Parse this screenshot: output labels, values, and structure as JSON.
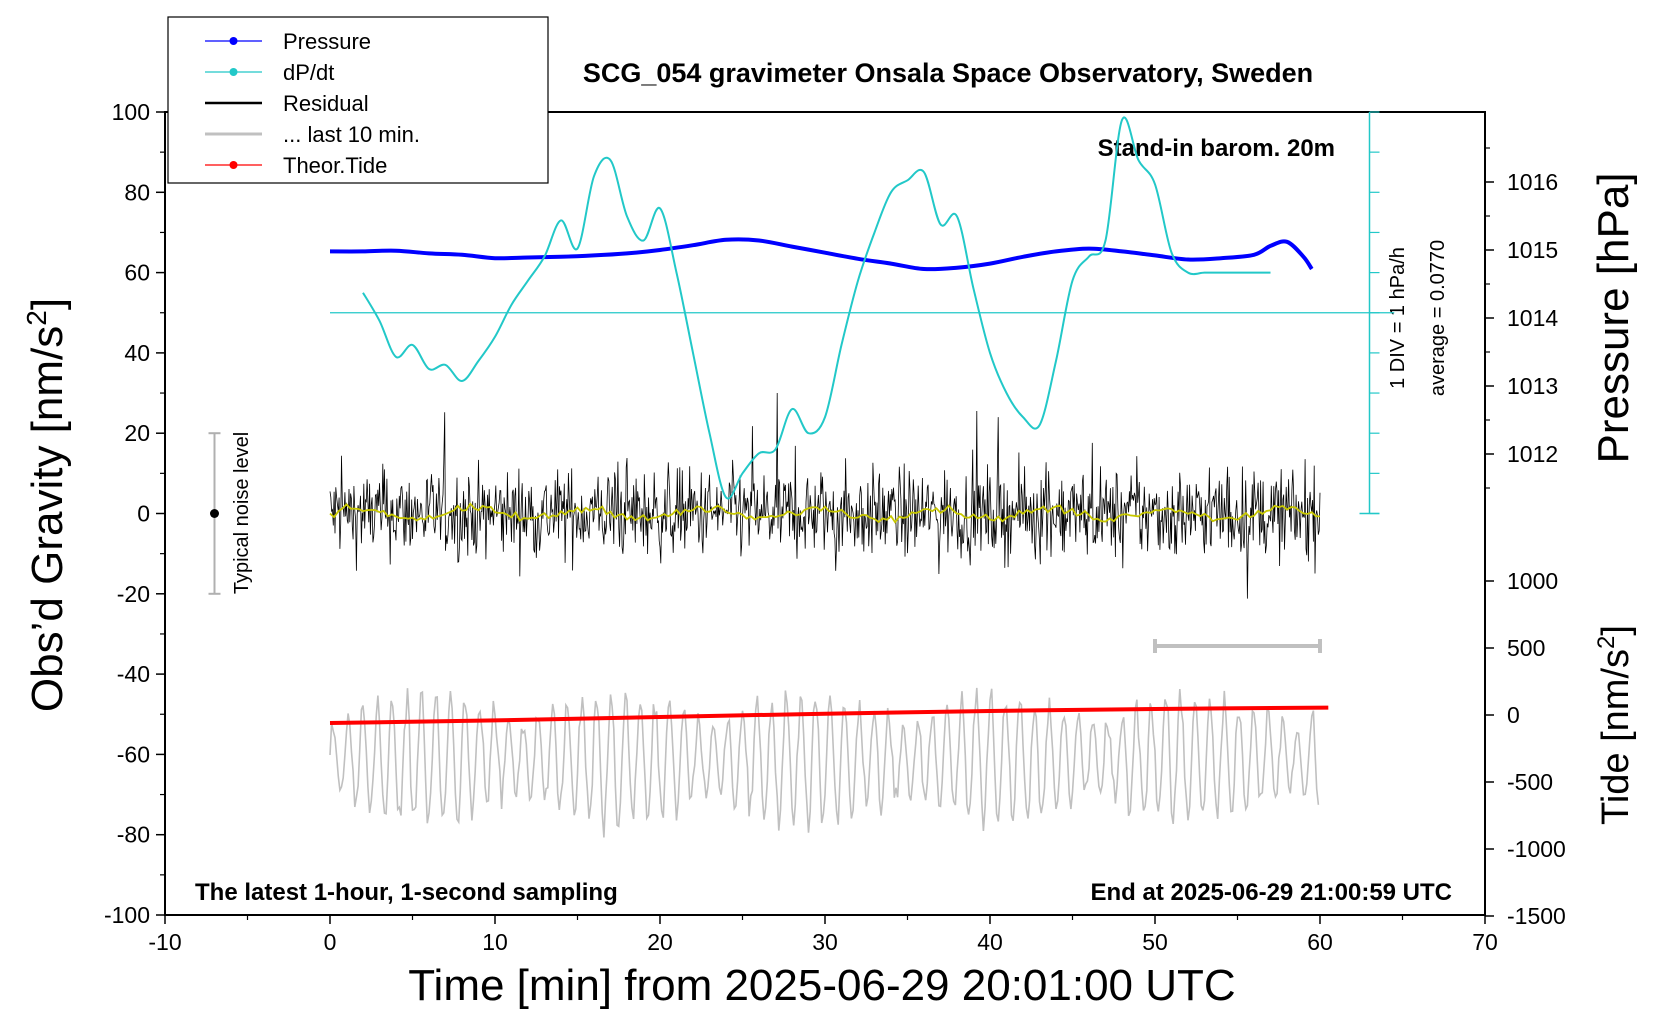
{
  "chart_data": {
    "type": "line",
    "title": "SCG_054 gravimeter Onsala Space Observatory, Sweden",
    "xlabel": "Time [min] from 2025-06-29 20:01:00 UTC",
    "ylabel_main": "Obs’d Gravity [nm/s",
    "ylabel_main_sup": "2",
    "ylabel_main_end": "]",
    "ylabel_pressure": "Pressure [hPa]",
    "ylabel_tide": "Tide [nm/s",
    "ylabel_tide_sup": "2",
    "ylabel_tide_end": "]",
    "xlim": [
      -10,
      70
    ],
    "ylim": [
      -100,
      100
    ],
    "pressure_ylim": [
      1011.0,
      1017.0
    ],
    "tide_ylim": [
      -1500,
      1500
    ],
    "x_ticks": [
      "-10",
      "0",
      "10",
      "20",
      "30",
      "40",
      "50",
      "60",
      "70"
    ],
    "y_ticks": [
      "-100",
      "-80",
      "-60",
      "-40",
      "-20",
      "0",
      "20",
      "40",
      "60",
      "80",
      "100"
    ],
    "pressure_ticks": [
      "1012",
      "1013",
      "1014",
      "1015",
      "1016"
    ],
    "tide_ticks": [
      "-1500",
      "-1000",
      "-500",
      "0",
      "500",
      "1000"
    ],
    "grid": false,
    "legend_position": "top-left, outside",
    "legend": [
      {
        "name": "Pressure",
        "color": "#0000ff",
        "marker": true
      },
      {
        "name": "dP/dt",
        "color": "#22c8c8",
        "marker": true
      },
      {
        "name": "Residual",
        "color": "#000000",
        "marker": false
      },
      {
        "name": "... last 10 min.",
        "color": "#c0c0c0",
        "marker": false
      },
      {
        "name": "Theor.Tide",
        "color": "#ff0000",
        "marker": true
      }
    ],
    "annotations": {
      "barometer": "Stand-in barom. 20m",
      "latest": "The latest 1-hour, 1-second sampling",
      "end": "End at 2025-06-29 21:00:59 UTC",
      "noise": "Typical noise level",
      "div": "1 DIV = 1 hPa/h",
      "average": "average = 0.0770"
    },
    "noise_bar": {
      "x": -7,
      "center": 0,
      "half_range": 20
    },
    "last10_bar": {
      "x": [
        50,
        60
      ],
      "y": -33
    },
    "dpdt_zero_line": 50,
    "series": [
      {
        "name": "Pressure",
        "axis": "pressure",
        "color": "#0000ff",
        "x": [
          0,
          2,
          4,
          6,
          8,
          10,
          12,
          14,
          16,
          18,
          20,
          22,
          24,
          26,
          28,
          30,
          32,
          34,
          36,
          38,
          40,
          42,
          44,
          46,
          48,
          50,
          52,
          54,
          56,
          57,
          58,
          59,
          59.5
        ],
        "y": [
          1014.98,
          1014.98,
          1014.99,
          1014.95,
          1014.93,
          1014.88,
          1014.89,
          1014.9,
          1014.92,
          1014.95,
          1015.0,
          1015.07,
          1015.15,
          1015.14,
          1015.05,
          1014.96,
          1014.87,
          1014.8,
          1014.72,
          1014.74,
          1014.8,
          1014.9,
          1014.98,
          1015.02,
          1014.98,
          1014.92,
          1014.86,
          1014.88,
          1014.93,
          1015.06,
          1015.12,
          1014.9,
          1014.72
        ]
      },
      {
        "name": "dP/dt",
        "axis": "main",
        "color": "#22c8c8",
        "x": [
          2,
          3,
          4,
          5,
          6,
          7,
          8,
          9,
          10,
          11,
          12,
          13,
          14,
          15,
          16,
          17,
          18,
          19,
          20,
          21,
          22,
          23,
          24,
          25,
          26,
          27,
          28,
          29,
          30,
          31,
          32,
          33,
          34,
          35,
          36,
          37,
          38,
          39,
          40,
          41,
          42,
          43,
          44,
          45,
          46,
          47,
          48,
          49,
          50,
          51,
          52,
          53,
          54,
          55,
          56,
          57
        ],
        "y": [
          55,
          48,
          39,
          42,
          36,
          37,
          33,
          38,
          44,
          52,
          58,
          64,
          73,
          66,
          84,
          88,
          74,
          68,
          76,
          60,
          40,
          20,
          4,
          10,
          15,
          16,
          26,
          20,
          24,
          42,
          58,
          70,
          80,
          83,
          85,
          72,
          74,
          56,
          40,
          30,
          24,
          22,
          38,
          58,
          64,
          68,
          98,
          88,
          82,
          65,
          60,
          60,
          60,
          60,
          60,
          60
        ]
      },
      {
        "name": "Theor.Tide",
        "axis": "tide",
        "color": "#ff0000",
        "x": [
          0,
          10,
          20,
          30,
          40,
          50,
          60.5
        ],
        "y": [
          -60,
          -40,
          -15,
          10,
          30,
          45,
          55
        ]
      }
    ]
  }
}
